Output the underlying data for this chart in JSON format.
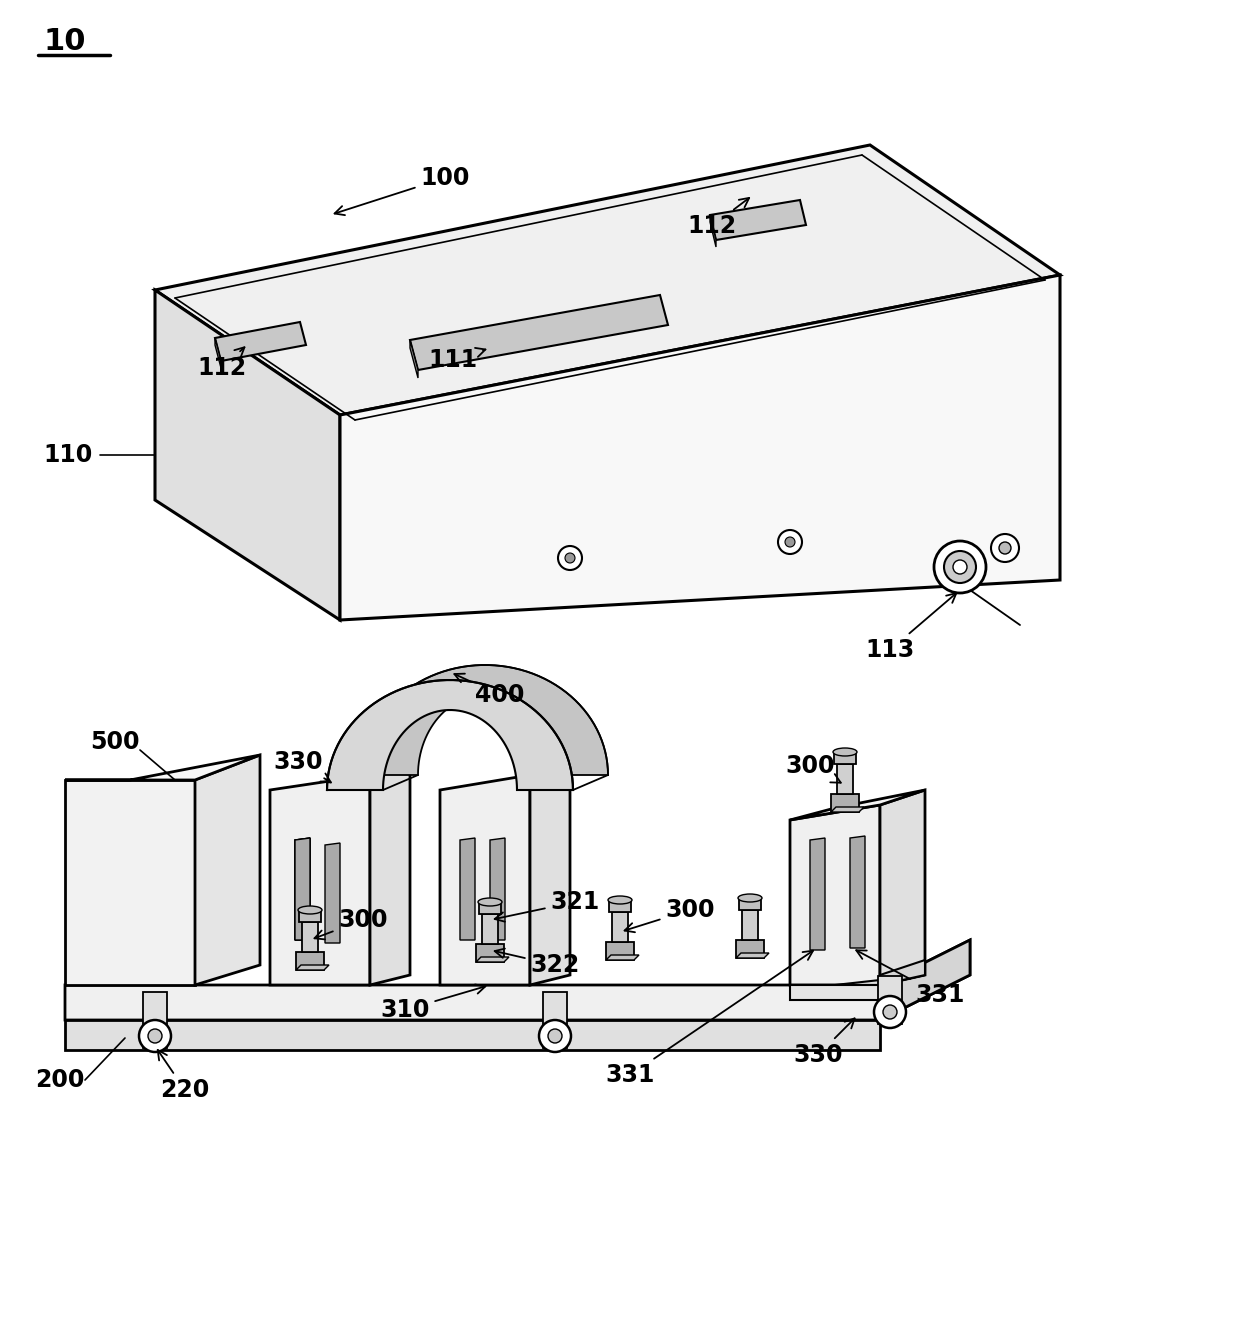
{
  "bg": "#ffffff",
  "lc": "#000000",
  "lw": 1.8,
  "fs": 17,
  "fw": "bold",
  "fig_w": 12.4,
  "fig_h": 13.39
}
